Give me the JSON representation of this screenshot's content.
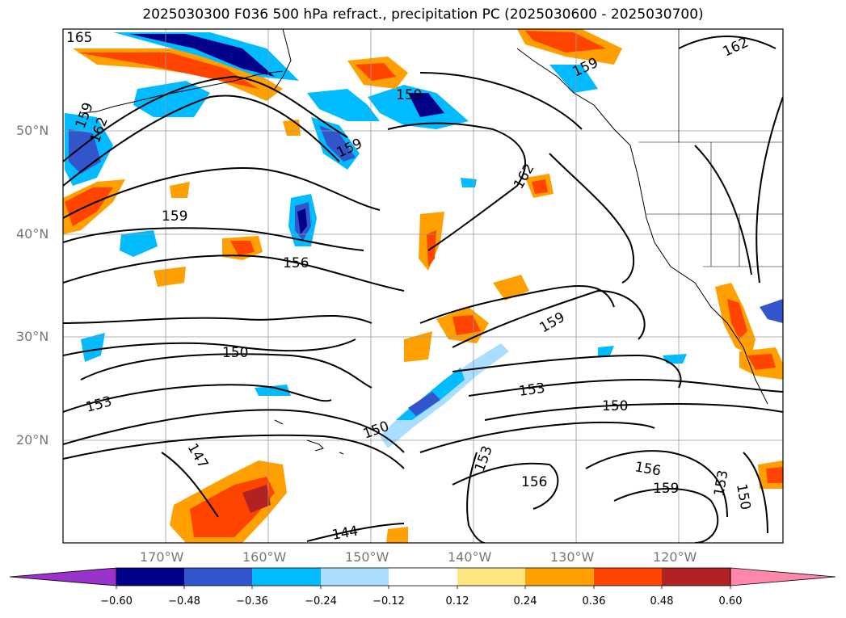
{
  "title": "2025030300 F036 500 hPa refract., precipitation PC (2025030600 - 2025030700)",
  "lat_labels": [
    "50°N",
    "40°N",
    "30°N",
    "20°N"
  ],
  "lon_labels": [
    "170°W",
    "160°W",
    "150°W",
    "140°W",
    "130°W",
    "120°W"
  ],
  "contour_labels": [
    "165",
    "162",
    "159",
    "159",
    "159",
    "162",
    "159",
    "162",
    "159",
    "156",
    "159",
    "150",
    "153",
    "150",
    "153",
    "150",
    "153",
    "156",
    "156",
    "159",
    "147",
    "144",
    "153",
    "150"
  ],
  "colorbar": {
    "ticks": [
      "−0.60",
      "−0.48",
      "−0.36",
      "−0.24",
      "−0.12",
      "0.12",
      "0.24",
      "0.36",
      "0.48",
      "0.60"
    ],
    "colors": [
      "#9933cc",
      "#000088",
      "#3355cc",
      "#00bbff",
      "#aaddff",
      "#ffffff",
      "#ffe680",
      "#ffa000",
      "#ff4400",
      "#b22222",
      "#ff88aa"
    ]
  }
}
